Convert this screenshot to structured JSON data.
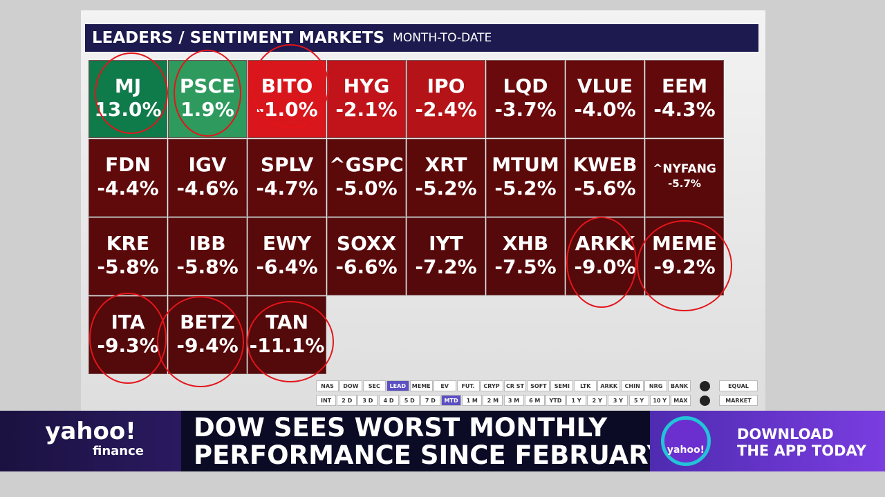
{
  "header": {
    "title": "LEADERS / SENTIMENT MARKETS",
    "subtitle": "MONTH-TO-DATE"
  },
  "tiles": [
    {
      "ticker": "MJ",
      "change": "13.0%",
      "color": "#0f7a4a"
    },
    {
      "ticker": "PSCE",
      "change": "1.9%",
      "color": "#2e9a5e"
    },
    {
      "ticker": "BITO",
      "change": "-1.0%",
      "color": "#d8161b"
    },
    {
      "ticker": "HYG",
      "change": "-2.1%",
      "color": "#c0141a"
    },
    {
      "ticker": "IPO",
      "change": "-2.4%",
      "color": "#b41318"
    },
    {
      "ticker": "LQD",
      "change": "-3.7%",
      "color": "#6a0a0c"
    },
    {
      "ticker": "VLUE",
      "change": "-4.0%",
      "color": "#660a0c"
    },
    {
      "ticker": "EEM",
      "change": "-4.3%",
      "color": "#620a0b"
    },
    {
      "ticker": "FDN",
      "change": "-4.4%",
      "color": "#600a0b"
    },
    {
      "ticker": "IGV",
      "change": "-4.6%",
      "color": "#5e0a0b"
    },
    {
      "ticker": "SPLV",
      "change": "-4.7%",
      "color": "#5e0a0b"
    },
    {
      "ticker": "^GSPC",
      "change": "-5.0%",
      "color": "#5c090a"
    },
    {
      "ticker": "XRT",
      "change": "-5.2%",
      "color": "#5c090a"
    },
    {
      "ticker": "MTUM",
      "change": "-5.2%",
      "color": "#5c090a"
    },
    {
      "ticker": "KWEB",
      "change": "-5.6%",
      "color": "#5a090a"
    },
    {
      "ticker": "^NYFANG",
      "change": "-5.7%",
      "color": "#5a090a"
    },
    {
      "ticker": "KRE",
      "change": "-5.8%",
      "color": "#5a090a"
    },
    {
      "ticker": "IBB",
      "change": "-5.8%",
      "color": "#5a090a"
    },
    {
      "ticker": "EWY",
      "change": "-6.4%",
      "color": "#58090a"
    },
    {
      "ticker": "SOXX",
      "change": "-6.6%",
      "color": "#58090a"
    },
    {
      "ticker": "IYT",
      "change": "-7.2%",
      "color": "#56090a"
    },
    {
      "ticker": "XHB",
      "change": "-7.5%",
      "color": "#56090a"
    },
    {
      "ticker": "ARKK",
      "change": "-9.0%",
      "color": "#54090a"
    },
    {
      "ticker": "MEME",
      "change": "-9.2%",
      "color": "#54090a"
    },
    {
      "ticker": "ITA",
      "change": "-9.3%",
      "color": "#54090a"
    },
    {
      "ticker": "BETZ",
      "change": "-9.4%",
      "color": "#54090a"
    },
    {
      "ticker": "TAN",
      "change": "-11.1%",
      "color": "#54090a"
    }
  ],
  "groups": [
    "NAS",
    "DOW",
    "SEC",
    "LEAD",
    "MEME",
    "EV",
    "FUT.",
    "CRYP",
    "CR ST",
    "SOFT",
    "SEMI",
    "LTK",
    "ARKK",
    "CHIN",
    "NRG",
    "BANK"
  ],
  "periods": [
    "INT",
    "2 D",
    "3 D",
    "4 D",
    "5 D",
    "7 D",
    "MTD",
    "1 M",
    "2 M",
    "3 M",
    "6 M",
    "YTD",
    "1 Y",
    "2 Y",
    "3 Y",
    "5 Y",
    "10 Y",
    "MAX"
  ],
  "active": {
    "group": "LEAD",
    "period": "MTD"
  },
  "weighting": [
    "EQUAL",
    "MARKET"
  ],
  "lower_third": {
    "brand": "yahoo!",
    "brand_sub": "finance",
    "headline": [
      "DOW SEES WORST MONTHLY",
      "PERFORMANCE SINCE FEBRUARY"
    ],
    "app_logo": "yahoo!",
    "promo": [
      "DOWNLOAD",
      "THE APP TODAY"
    ]
  }
}
